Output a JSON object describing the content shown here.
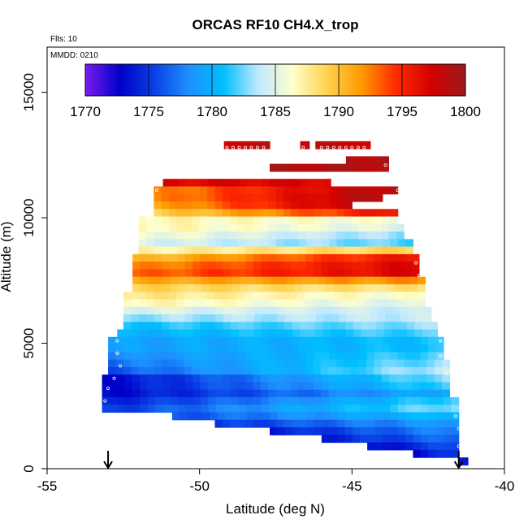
{
  "chart_data": {
    "type": "heatmap",
    "title": "ORCAS RF10 CH4.X_trop",
    "annotations": {
      "flights": "Flts: 10",
      "date": "MMDD: 0210"
    },
    "xlabel": "Latitude (deg N)",
    "ylabel": "Altitude (m)",
    "xlim": [
      -55,
      -40
    ],
    "ylim": [
      0,
      16800
    ],
    "x_ticks": [
      -55,
      -50,
      -45,
      -40
    ],
    "y_ticks": [
      0,
      5000,
      10000,
      15000
    ],
    "colorbar": {
      "min": 1770,
      "max": 1800,
      "ticks": [
        1770,
        1775,
        1780,
        1785,
        1790,
        1795,
        1800
      ],
      "stops": [
        "#7a1cf0",
        "#0000c8",
        "#0a40e6",
        "#1e90ff",
        "#00bfff",
        "#bfe8ff",
        "#ffffcc",
        "#ffd24d",
        "#ff9900",
        "#ff2a00",
        "#d40000",
        "#9b1b1b"
      ]
    },
    "bin_height_m": 300,
    "rows": [
      {
        "alt": 12900,
        "segs": [
          [
            -49.2,
            -47.7,
            [
              1798,
              1798
            ]
          ],
          [
            -46.7,
            -46.4,
            [
              1798,
              1798
            ]
          ],
          [
            -46.2,
            -44.4,
            [
              1798,
              1798
            ]
          ]
        ]
      },
      {
        "alt": 12300,
        "segs": [
          [
            -45.2,
            -43.8,
            [
              1799,
              1799
            ]
          ]
        ]
      },
      {
        "alt": 12000,
        "segs": [
          [
            -47.7,
            -43.8,
            [
              1799,
              1799
            ]
          ]
        ]
      },
      {
        "alt": 11400,
        "segs": [
          [
            -51.2,
            -45.7,
            [
              1797,
              1797
            ]
          ]
        ]
      },
      {
        "alt": 11100,
        "segs": [
          [
            -51.5,
            -43.5,
            [
              1792,
              1799
            ]
          ]
        ]
      },
      {
        "alt": 10800,
        "segs": [
          [
            -51.5,
            -44.0,
            [
              1792,
              1799
            ]
          ]
        ]
      },
      {
        "alt": 10500,
        "segs": [
          [
            -51.5,
            -45.0,
            [
              1791,
              1798
            ]
          ]
        ]
      },
      {
        "alt": 10200,
        "segs": [
          [
            -51.5,
            -43.5,
            [
              1789,
              1796
            ]
          ]
        ]
      },
      {
        "alt": 9900,
        "segs": [
          [
            -52.0,
            -43.5,
            [
              1787,
              1786
            ]
          ]
        ]
      },
      {
        "alt": 9600,
        "segs": [
          [
            -52.0,
            -43.3,
            [
              1787,
              1785
            ]
          ]
        ]
      },
      {
        "alt": 9300,
        "segs": [
          [
            -52.0,
            -43.3,
            [
              1786,
              1783
            ]
          ]
        ]
      },
      {
        "alt": 9000,
        "segs": [
          [
            -52.0,
            -43.0,
            [
              1785,
              1782
            ]
          ]
        ]
      },
      {
        "alt": 8700,
        "segs": [
          [
            -52.0,
            -43.0,
            [
              1787,
              1789
            ]
          ]
        ]
      },
      {
        "alt": 8400,
        "segs": [
          [
            -52.2,
            -42.8,
            [
              1790,
              1796
            ]
          ]
        ]
      },
      {
        "alt": 8100,
        "segs": [
          [
            -52.2,
            -42.8,
            [
              1792,
              1797
            ]
          ]
        ]
      },
      {
        "alt": 7800,
        "segs": [
          [
            -52.2,
            -42.8,
            [
              1793,
              1797
            ]
          ]
        ]
      },
      {
        "alt": 7500,
        "segs": [
          [
            -52.2,
            -42.6,
            [
              1791,
              1792
            ]
          ]
        ]
      },
      {
        "alt": 7200,
        "segs": [
          [
            -52.2,
            -42.6,
            [
              1789,
              1788
            ]
          ]
        ]
      },
      {
        "alt": 6900,
        "segs": [
          [
            -52.5,
            -42.6,
            [
              1788,
              1786
            ]
          ]
        ]
      },
      {
        "alt": 6600,
        "segs": [
          [
            -52.5,
            -42.6,
            [
              1787,
              1785
            ]
          ]
        ]
      },
      {
        "alt": 6300,
        "segs": [
          [
            -52.5,
            -42.4,
            [
              1785,
              1784
            ]
          ]
        ]
      },
      {
        "alt": 6000,
        "segs": [
          [
            -52.5,
            -42.4,
            [
              1783,
              1784
            ]
          ]
        ]
      },
      {
        "alt": 5700,
        "segs": [
          [
            -52.5,
            -42.2,
            [
              1781,
              1783
            ]
          ]
        ]
      },
      {
        "alt": 5400,
        "segs": [
          [
            -52.7,
            -42.2,
            [
              1780,
              1782
            ]
          ]
        ]
      },
      {
        "alt": 5100,
        "segs": [
          [
            -53.0,
            -42.0,
            [
              1779,
              1781
            ]
          ]
        ]
      },
      {
        "alt": 4800,
        "segs": [
          [
            -53.0,
            -42.0,
            [
              1779,
              1781
            ]
          ]
        ]
      },
      {
        "alt": 4500,
        "segs": [
          [
            -53.0,
            -42.0,
            [
              1778,
              1782
            ]
          ]
        ]
      },
      {
        "alt": 4200,
        "segs": [
          [
            -53.0,
            -41.8,
            [
              1777,
              1783
            ]
          ]
        ]
      },
      {
        "alt": 3900,
        "segs": [
          [
            -53.0,
            -41.8,
            [
              1776,
              1784
            ]
          ]
        ]
      },
      {
        "alt": 3600,
        "segs": [
          [
            -53.2,
            -41.8,
            [
              1773,
              1783
            ]
          ]
        ]
      },
      {
        "alt": 3300,
        "segs": [
          [
            -53.2,
            -41.8,
            [
              1773,
              1782
            ]
          ]
        ]
      },
      {
        "alt": 3000,
        "segs": [
          [
            -53.2,
            -41.8,
            [
              1773,
              1780
            ]
          ]
        ]
      },
      {
        "alt": 2700,
        "segs": [
          [
            -53.2,
            -41.5,
            [
              1774,
              1782
            ]
          ]
        ]
      },
      {
        "alt": 2400,
        "segs": [
          [
            -53.2,
            -41.5,
            [
              1775,
              1783
            ]
          ]
        ]
      },
      {
        "alt": 2100,
        "segs": [
          [
            -50.9,
            -41.5,
            [
              1776,
              1781
            ]
          ]
        ]
      },
      {
        "alt": 1800,
        "segs": [
          [
            -49.5,
            -41.5,
            [
              1775,
              1779
            ]
          ]
        ]
      },
      {
        "alt": 1500,
        "segs": [
          [
            -47.7,
            -41.5,
            [
              1774,
              1778
            ]
          ]
        ]
      },
      {
        "alt": 1200,
        "segs": [
          [
            -46.0,
            -41.5,
            [
              1774,
              1777
            ]
          ]
        ]
      },
      {
        "alt": 900,
        "segs": [
          [
            -44.5,
            -41.5,
            [
              1773,
              1776
            ]
          ]
        ]
      },
      {
        "alt": 600,
        "segs": [
          [
            -43.0,
            -41.5,
            [
              1773,
              1775
            ]
          ]
        ]
      },
      {
        "alt": 300,
        "segs": [
          [
            -41.5,
            -41.2,
            [
              1774,
              1774
            ]
          ]
        ]
      }
    ],
    "points": [
      [
        -49.1,
        12800
      ],
      [
        -48.9,
        12800
      ],
      [
        -48.7,
        12800
      ],
      [
        -48.5,
        12800
      ],
      [
        -48.3,
        12800
      ],
      [
        -48.1,
        12800
      ],
      [
        -47.9,
        12800
      ],
      [
        -46.6,
        12800
      ],
      [
        -46.0,
        12800
      ],
      [
        -45.8,
        12800
      ],
      [
        -45.6,
        12800
      ],
      [
        -45.4,
        12800
      ],
      [
        -45.2,
        12800
      ],
      [
        -45.0,
        12800
      ],
      [
        -44.8,
        12800
      ],
      [
        -44.6,
        12800
      ],
      [
        -43.9,
        12100
      ],
      [
        -43.5,
        11100
      ],
      [
        -51.4,
        11100
      ],
      [
        -42.9,
        8200
      ],
      [
        -42.8,
        7700
      ],
      [
        -52.7,
        5100
      ],
      [
        -42.1,
        5100
      ],
      [
        -52.7,
        4600
      ],
      [
        -42.1,
        4500
      ],
      [
        -52.6,
        4100
      ],
      [
        -41.9,
        3800
      ],
      [
        -52.8,
        3600
      ],
      [
        -53.0,
        3200
      ],
      [
        -53.1,
        2700
      ],
      [
        -41.6,
        2100
      ],
      [
        -41.5,
        1600
      ],
      [
        -41.5,
        900
      ]
    ],
    "arrows_lat": [
      -53.0,
      -41.5
    ]
  }
}
